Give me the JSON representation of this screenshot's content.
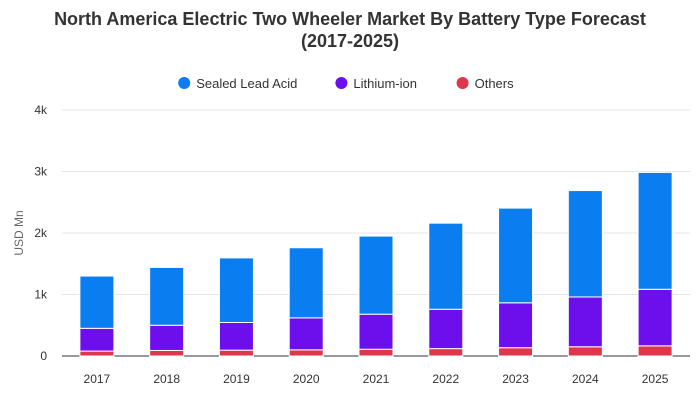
{
  "chart_data": {
    "type": "bar",
    "stacked": true,
    "title_line1": "North America Electric Two Wheeler Market By Battery Type Forecast",
    "title_line2": "(2017-2025)",
    "ylabel": "USD Mn",
    "ylim": [
      0,
      4000
    ],
    "y_ticks": [
      0,
      1000,
      2000,
      3000,
      4000
    ],
    "y_tick_labels": [
      "0",
      "1k",
      "2k",
      "3k",
      "4k"
    ],
    "legend_position": "top",
    "grid": true,
    "categories": [
      "2017",
      "2018",
      "2019",
      "2020",
      "2021",
      "2022",
      "2023",
      "2024",
      "2025"
    ],
    "series": [
      {
        "name": "Others",
        "color": "#e0354b",
        "values": [
          80,
          90,
          95,
          100,
          110,
          120,
          135,
          150,
          165
        ]
      },
      {
        "name": "Lithium-ion",
        "color": "#6d0fed",
        "values": [
          370,
          410,
          450,
          520,
          570,
          640,
          730,
          810,
          920
        ]
      },
      {
        "name": "Sealed Lead Acid",
        "color": "#0a7df0",
        "values": [
          850,
          940,
          1050,
          1140,
          1270,
          1400,
          1540,
          1730,
          1900
        ]
      }
    ],
    "legend_order": [
      "Sealed Lead Acid",
      "Lithium-ion",
      "Others"
    ]
  }
}
